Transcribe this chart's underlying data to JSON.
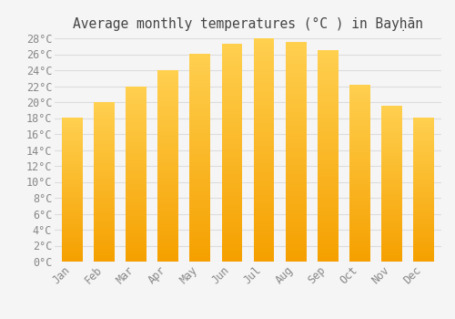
{
  "title": "Average monthly temperatures (°C ) in Bayḥān",
  "months": [
    "Jan",
    "Feb",
    "Mar",
    "Apr",
    "May",
    "Jun",
    "Jul",
    "Aug",
    "Sep",
    "Oct",
    "Nov",
    "Dec"
  ],
  "values": [
    18,
    20,
    22,
    24,
    26,
    27.3,
    28,
    27.5,
    26.5,
    22.2,
    19.5,
    18
  ],
  "bar_color_light": "#FFD050",
  "bar_color_dark": "#F5A000",
  "ylim": [
    0,
    28
  ],
  "ytick_max": 28,
  "ytick_step": 2,
  "background_color": "#f5f5f5",
  "grid_color": "#dddddd",
  "title_fontsize": 10.5,
  "tick_fontsize": 8.5,
  "title_color": "#444444",
  "tick_color": "#888888"
}
